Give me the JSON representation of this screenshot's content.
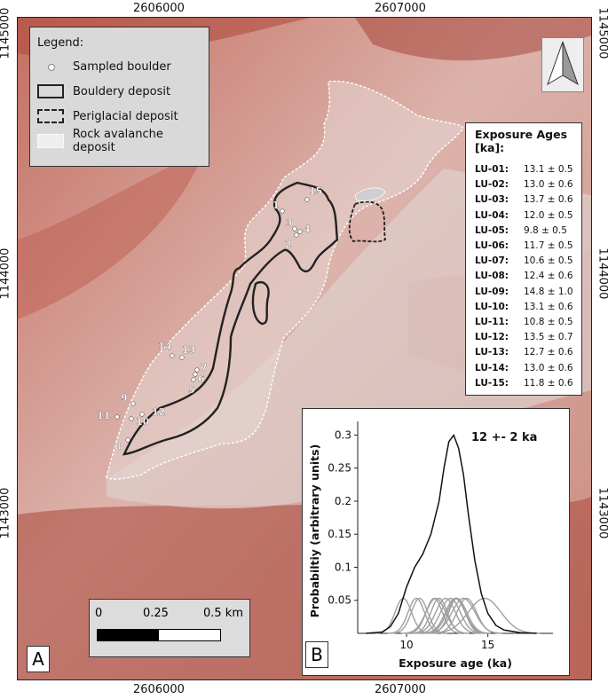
{
  "coords": {
    "x_ticks": [
      "2606000",
      "2607000"
    ],
    "y_ticks": [
      "1145000",
      "1144000",
      "1143000"
    ]
  },
  "legend": {
    "title": "Legend:",
    "items": [
      {
        "label": "Sampled boulder"
      },
      {
        "label": "Bouldery deposit"
      },
      {
        "label": "Periglacial deposit"
      },
      {
        "label": "Rock avalanche deposit"
      }
    ]
  },
  "exposure_ages": {
    "title_line1": "Exposure Ages",
    "title_line2": "[ka]:",
    "rows": [
      {
        "id": "LU-01:",
        "value": "13.1 ± 0.5"
      },
      {
        "id": "LU-02:",
        "value": "13.0 ± 0.6"
      },
      {
        "id": "LU-03:",
        "value": "13.7 ± 0.6"
      },
      {
        "id": "LU-04:",
        "value": "12.0 ± 0.5"
      },
      {
        "id": "LU-05:",
        "value": "9.8 ± 0.5"
      },
      {
        "id": "LU-06:",
        "value": "11.7 ± 0.5"
      },
      {
        "id": "LU-07:",
        "value": "10.6 ± 0.5"
      },
      {
        "id": "LU-08:",
        "value": "12.4 ± 0.6"
      },
      {
        "id": "LU-09:",
        "value": "14.8 ± 1.0"
      },
      {
        "id": "LU-10:",
        "value": "13.1 ± 0.6"
      },
      {
        "id": "LU-11:",
        "value": "10.8 ± 0.5"
      },
      {
        "id": "LU-12:",
        "value": "13.5 ± 0.7"
      },
      {
        "id": "LU-13:",
        "value": "12.7 ± 0.6"
      },
      {
        "id": "LU-14:",
        "value": "13.0 ± 0.6"
      },
      {
        "id": "LU-15:",
        "value": "11.8 ± 0.6"
      }
    ]
  },
  "samples": [
    "1",
    "2",
    "3",
    "4",
    "5",
    "6",
    "7",
    "8",
    "9",
    "10",
    "11",
    "12",
    "13",
    "14",
    "15"
  ],
  "scalebar": {
    "label_0": "0",
    "label_mid": "0.25",
    "label_end": "0.5 km"
  },
  "panels": {
    "a": "A",
    "b": "B"
  },
  "chart_data": {
    "type": "line",
    "annotation": "12 +- 2 ka",
    "xlabel": "Exposure age (ka)",
    "ylabel": "Probabiltiy (arbitrary units)",
    "xlim": [
      7,
      19
    ],
    "ylim": [
      0,
      0.31
    ],
    "xticks": [
      10,
      15
    ],
    "yticks": [
      0.05,
      0.1,
      0.15,
      0.2,
      0.25,
      0.3
    ],
    "summed_curve": {
      "x": [
        7.5,
        8.5,
        9.0,
        9.5,
        10.0,
        10.5,
        11.0,
        11.5,
        12.0,
        12.3,
        12.6,
        12.9,
        13.2,
        13.5,
        13.8,
        14.2,
        14.6,
        15.0,
        15.5,
        16.0,
        17.0,
        18.0
      ],
      "y": [
        0.0,
        0.002,
        0.01,
        0.03,
        0.07,
        0.1,
        0.12,
        0.15,
        0.2,
        0.25,
        0.29,
        0.3,
        0.28,
        0.24,
        0.18,
        0.11,
        0.06,
        0.03,
        0.012,
        0.005,
        0.001,
        0.0
      ]
    },
    "individual_ages": [
      {
        "mean": 13.1,
        "sd": 0.5
      },
      {
        "mean": 13.0,
        "sd": 0.6
      },
      {
        "mean": 13.7,
        "sd": 0.6
      },
      {
        "mean": 12.0,
        "sd": 0.5
      },
      {
        "mean": 9.8,
        "sd": 0.5
      },
      {
        "mean": 11.7,
        "sd": 0.5
      },
      {
        "mean": 10.6,
        "sd": 0.5
      },
      {
        "mean": 12.4,
        "sd": 0.6
      },
      {
        "mean": 14.8,
        "sd": 1.0
      },
      {
        "mean": 13.1,
        "sd": 0.6
      },
      {
        "mean": 10.8,
        "sd": 0.5
      },
      {
        "mean": 13.5,
        "sd": 0.7
      },
      {
        "mean": 12.7,
        "sd": 0.6
      },
      {
        "mean": 13.0,
        "sd": 0.6
      },
      {
        "mean": 11.8,
        "sd": 0.6
      }
    ]
  }
}
